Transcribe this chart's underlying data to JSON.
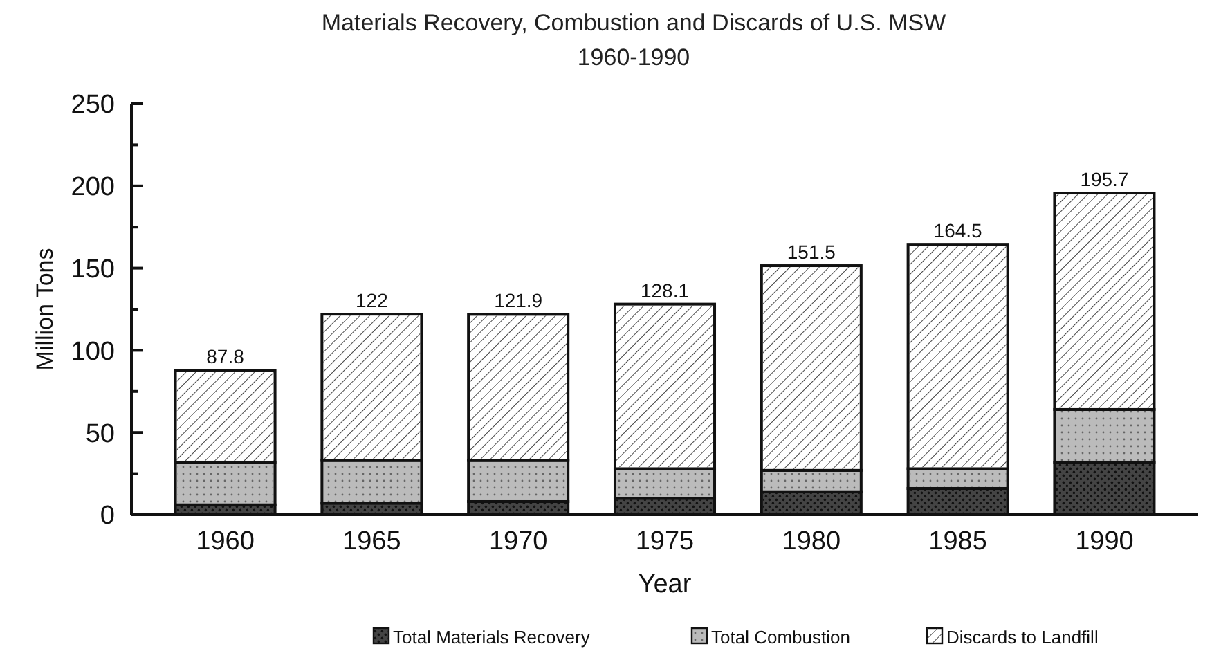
{
  "chart_data": {
    "type": "bar",
    "title": "Materials Recovery, Combustion and Discards of U.S. MSW",
    "subtitle": "1960-1990",
    "xlabel": "Year",
    "ylabel": "Million Tons",
    "categories": [
      "1960",
      "1965",
      "1970",
      "1975",
      "1980",
      "1985",
      "1990"
    ],
    "series": [
      {
        "name": "Total Materials Recovery",
        "color": "#444444",
        "values": [
          6,
          7,
          8,
          10,
          14,
          16,
          32
        ]
      },
      {
        "name": "Total Combustion",
        "color": "#bbbbbb",
        "values": [
          26,
          26,
          25,
          18,
          13,
          12,
          32
        ]
      },
      {
        "name": "Discards to Landfill",
        "color": "#ffffff",
        "values": [
          55.8,
          89,
          88.9,
          100.1,
          124.5,
          136.5,
          131.7
        ]
      }
    ],
    "stacked": true,
    "totals": [
      "87.8",
      "122",
      "121.9",
      "128.1",
      "151.5",
      "164.5",
      "195.7"
    ],
    "ylim": [
      0,
      250
    ],
    "yticks": [
      0,
      {
        "value": 25,
        "label": null
      },
      50,
      {
        "value": 75,
        "label": null
      },
      100,
      {
        "value": 125,
        "label": null
      },
      150,
      {
        "value": 175,
        "label": null
      },
      200,
      {
        "value": 225,
        "label": null
      },
      250
    ],
    "grid": false,
    "legend": "bottom"
  }
}
